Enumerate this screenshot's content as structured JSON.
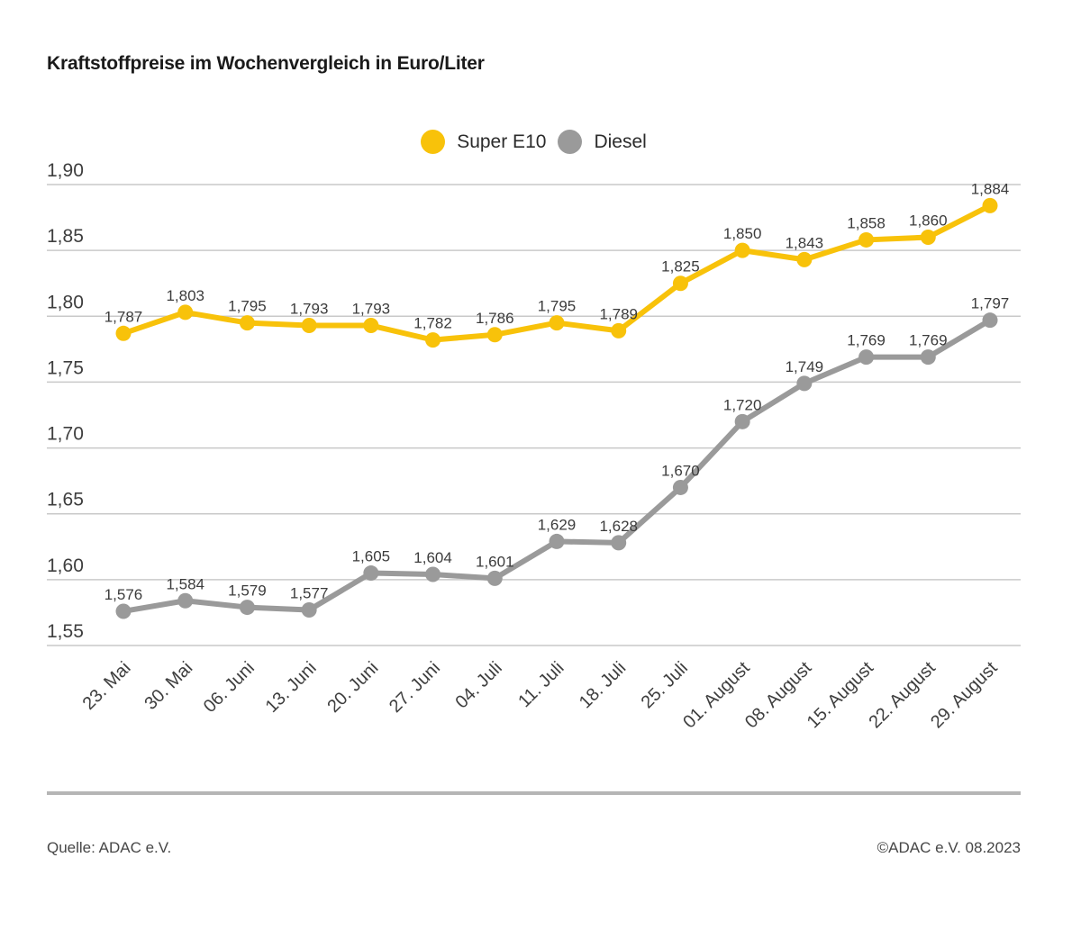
{
  "title": "Kraftstoffpreise im Wochenvergleich in Euro/Liter",
  "legend": [
    {
      "label": "Super E10",
      "color": "#F8C20A"
    },
    {
      "label": "Diesel",
      "color": "#9A9A9A"
    }
  ],
  "footer": {
    "source": "Quelle: ADAC e.V.",
    "copyright": "©ADAC e.V. 08.2023"
  },
  "colors": {
    "gridline": "#c9c9c9",
    "axis_text": "#3e3e3e",
    "data_label_text": "#3c3c3c"
  },
  "chart_data": {
    "type": "line",
    "title": "Kraftstoffpreise im Wochenvergleich in Euro/Liter",
    "xlabel": "",
    "ylabel": "Euro/Liter",
    "ylim": [
      1.55,
      1.9
    ],
    "ytick_step": 0.05,
    "ytick_labels": [
      "1,55",
      "1,60",
      "1,65",
      "1,70",
      "1,75",
      "1,80",
      "1,85",
      "1,90"
    ],
    "grid": true,
    "legend_position": "top-center",
    "categories": [
      "23. Mai",
      "30. Mai",
      "06. Juni",
      "13. Juni",
      "20. Juni",
      "27. Juni",
      "04. Juli",
      "11. Juli",
      "18. Juli",
      "25. Juli",
      "01. August",
      "08. August",
      "15. August",
      "22. August",
      "29. August"
    ],
    "series": [
      {
        "name": "Super E10",
        "color": "#F8C20A",
        "values": [
          1.787,
          1.803,
          1.795,
          1.793,
          1.793,
          1.782,
          1.786,
          1.795,
          1.789,
          1.825,
          1.85,
          1.843,
          1.858,
          1.86,
          1.884
        ],
        "value_labels": [
          "1,787",
          "1,803",
          "1,795",
          "1,793",
          "1,793",
          "1,782",
          "1,786",
          "1,795",
          "1,789",
          "1,825",
          "1,850",
          "1,843",
          "1,858",
          "1,860",
          "1,884"
        ]
      },
      {
        "name": "Diesel",
        "color": "#9A9A9A",
        "values": [
          1.576,
          1.584,
          1.579,
          1.577,
          1.605,
          1.604,
          1.601,
          1.629,
          1.628,
          1.67,
          1.72,
          1.749,
          1.769,
          1.769,
          1.797
        ],
        "value_labels": [
          "1,576",
          "1,584",
          "1,579",
          "1,577",
          "1,605",
          "1,604",
          "1,601",
          "1,629",
          "1,628",
          "1,670",
          "1,720",
          "1,749",
          "1,769",
          "1,769",
          "1,797"
        ]
      }
    ]
  }
}
